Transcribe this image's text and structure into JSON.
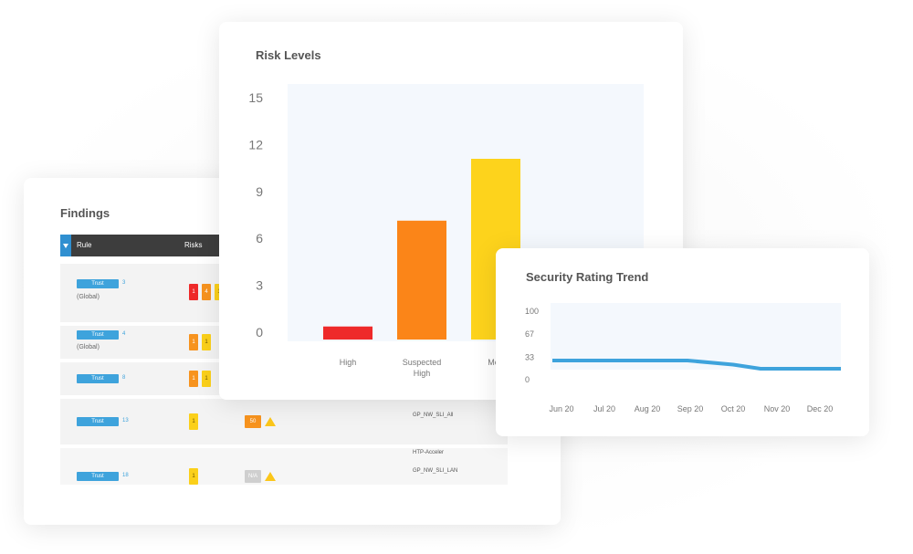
{
  "findings": {
    "title": "Findings",
    "headers": {
      "rule": "Rule",
      "risks": "Risks"
    },
    "rows": [
      {
        "trust": "Trust",
        "num": "3",
        "scope": "(Global)",
        "badges": [
          "1",
          "4",
          "1"
        ]
      },
      {
        "trust": "Trust",
        "num": "4",
        "scope": "(Global)",
        "badges": [
          "1",
          "1"
        ]
      },
      {
        "trust": "Trust",
        "num": "8",
        "scope": "",
        "badges": [
          "1",
          "1"
        ]
      },
      {
        "trust": "Trust",
        "num": "13",
        "scope": "",
        "badges": [
          "1"
        ],
        "extra_badge": "50",
        "profiles": [
          "GP_NW_SLI_All"
        ]
      },
      {
        "trust": "Trust",
        "num": "18",
        "scope": "",
        "badges": [
          "1"
        ],
        "extra_badge": "N/A",
        "profiles": [
          "HTP-Acceler",
          "GP_NW_SLI_LAN"
        ]
      }
    ],
    "colors": {
      "trust": "#3ea3dc",
      "header": "#3d3d3d",
      "filter": "#2f8fd0"
    }
  },
  "risk_levels": {
    "title": "Risk Levels",
    "chart_data": {
      "type": "bar",
      "title": "Risk Levels",
      "categories": [
        "High",
        "Suspected\nHigh",
        "Med"
      ],
      "values": [
        0.8,
        7.3,
        11.1
      ],
      "colors": [
        "#ee2a2a",
        "#fb8518",
        "#fdd31c"
      ],
      "ylim": [
        0,
        15
      ],
      "yticks": [
        "0",
        "3",
        "6",
        "9",
        "12",
        "15"
      ],
      "grid": false
    }
  },
  "security_trend": {
    "title": "Security Rating Trend",
    "chart_data": {
      "type": "line",
      "title": "Security Rating Trend",
      "x": [
        "Jun 20",
        "Jul 20",
        "Aug 20",
        "Sep 20",
        "Oct 20",
        "Nov 20",
        "Dec 20"
      ],
      "values": [
        28,
        28,
        28,
        28,
        22,
        16,
        16
      ],
      "ylim": [
        0,
        100
      ],
      "yticks": [
        "0",
        "33",
        "67",
        "100"
      ],
      "line_color": "#3ea3dc"
    }
  }
}
